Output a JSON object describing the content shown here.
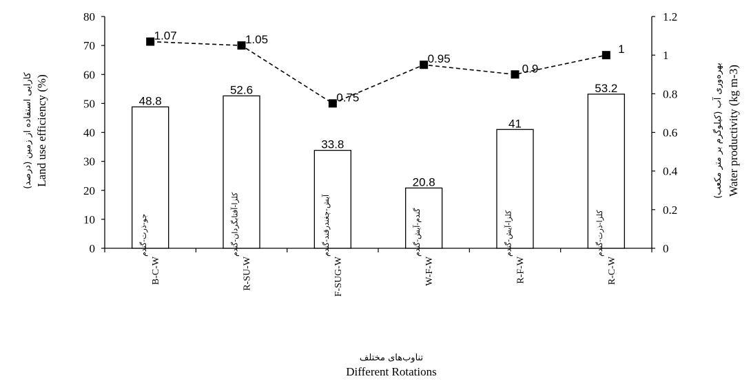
{
  "chart_data": {
    "type": "bar+line",
    "categories": [
      "B-C-W",
      "R-SU-W",
      "F-SUG-W",
      "W-F-W",
      "R-F-W",
      "R-C-W"
    ],
    "categories_fa": [
      "جو-ذرت-گندم",
      "کلزا-آفتابگردان-گندم",
      "آیش-چغندرقند-گندم",
      "گندم-آیش-گندم",
      "کلزا-آیش-گندم",
      "کلزا-ذرت-گندم"
    ],
    "series": [
      {
        "values": [
          48.8,
          52.6,
          33.8,
          20.8,
          41,
          53.2
        ],
        "labels": [
          "48.8",
          "52.6",
          "33.8",
          "20.8",
          "41",
          "53.2"
        ]
      },
      {
        "values": [
          1.07,
          1.05,
          0.75,
          0.95,
          0.9,
          1
        ],
        "labels": [
          "1.07",
          "1.05",
          "0.75",
          "0.95",
          "0.9",
          "1"
        ]
      }
    ],
    "xlabel": "Different Rotations",
    "xlabel_fa": "تناوب‌های مختلف",
    "ylabel": "Land use efficiency (%)",
    "ylabel_fa": "کارایی استفاده از زمین (درصد)",
    "y2label": "Water productivity (kg m-3)",
    "y2label_fa": "بهره‌وری آب (کیلوگرم بر متر مکعب)",
    "ylim": [
      0,
      80
    ],
    "yticks": [
      "0",
      "10",
      "20",
      "30",
      "40",
      "50",
      "60",
      "70",
      "80"
    ],
    "y2lim": [
      0,
      1.2
    ],
    "y2ticks": [
      "0",
      "0.2",
      "0.4",
      "0.6",
      "0.8",
      "1",
      "1.2"
    ],
    "grid": false
  }
}
